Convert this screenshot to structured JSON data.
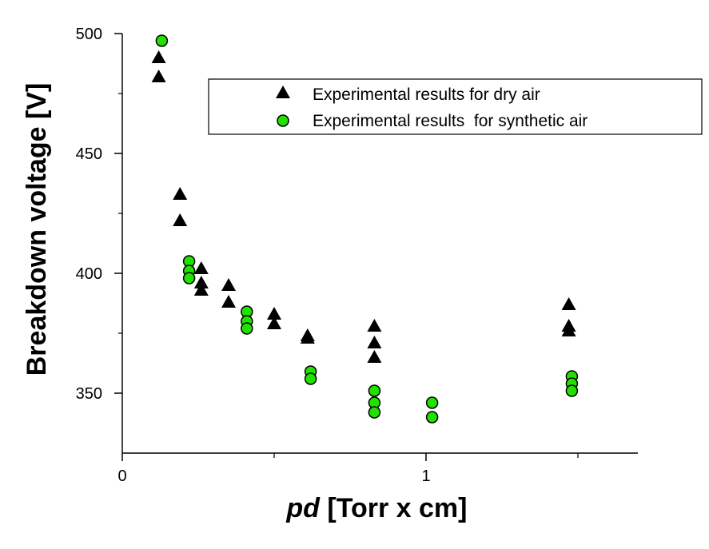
{
  "chart_data": {
    "type": "scatter",
    "xlabel_italic": "pd",
    "xlabel_rest": " [Torr x cm]",
    "ylabel": "Breakdown voltage [V]",
    "xlim": [
      0,
      1.7
    ],
    "ylim": [
      330,
      500
    ],
    "y_axis_range": [
      322,
      500
    ],
    "x_ticks": [
      {
        "value": 0,
        "label": "0"
      },
      {
        "value": 1,
        "label": "1"
      }
    ],
    "x_minor_ticks": [
      0.5,
      1.5
    ],
    "y_ticks": [
      {
        "value": 350,
        "label": "350"
      },
      {
        "value": 400,
        "label": "400"
      },
      {
        "value": 450,
        "label": "450"
      },
      {
        "value": 500,
        "label": "500"
      }
    ],
    "y_minor_ticks": [
      375,
      425,
      475
    ],
    "legend_position": "top-right",
    "colors": {
      "dry_air": "#000000",
      "synthetic_air": "#22e000"
    },
    "series": [
      {
        "name": "Experimental results for dry air",
        "marker": "triangle",
        "points": [
          [
            0.12,
            490
          ],
          [
            0.12,
            482
          ],
          [
            0.19,
            433
          ],
          [
            0.19,
            422
          ],
          [
            0.26,
            402
          ],
          [
            0.26,
            396
          ],
          [
            0.26,
            393
          ],
          [
            0.35,
            395
          ],
          [
            0.35,
            388
          ],
          [
            0.5,
            383
          ],
          [
            0.5,
            379
          ],
          [
            0.61,
            374
          ],
          [
            0.61,
            373
          ],
          [
            0.83,
            378
          ],
          [
            0.83,
            371
          ],
          [
            0.83,
            365
          ],
          [
            1.47,
            387
          ],
          [
            1.47,
            378
          ],
          [
            1.47,
            376
          ]
        ]
      },
      {
        "name": "Experimental results  for synthetic air",
        "marker": "circle",
        "points": [
          [
            0.13,
            497
          ],
          [
            0.22,
            405
          ],
          [
            0.22,
            401
          ],
          [
            0.22,
            398
          ],
          [
            0.41,
            384
          ],
          [
            0.41,
            380
          ],
          [
            0.41,
            377
          ],
          [
            0.62,
            359
          ],
          [
            0.62,
            356
          ],
          [
            0.83,
            351
          ],
          [
            0.83,
            346
          ],
          [
            0.83,
            342
          ],
          [
            1.02,
            346
          ],
          [
            1.02,
            340
          ],
          [
            1.48,
            357
          ],
          [
            1.48,
            354
          ],
          [
            1.48,
            351
          ]
        ]
      }
    ]
  }
}
